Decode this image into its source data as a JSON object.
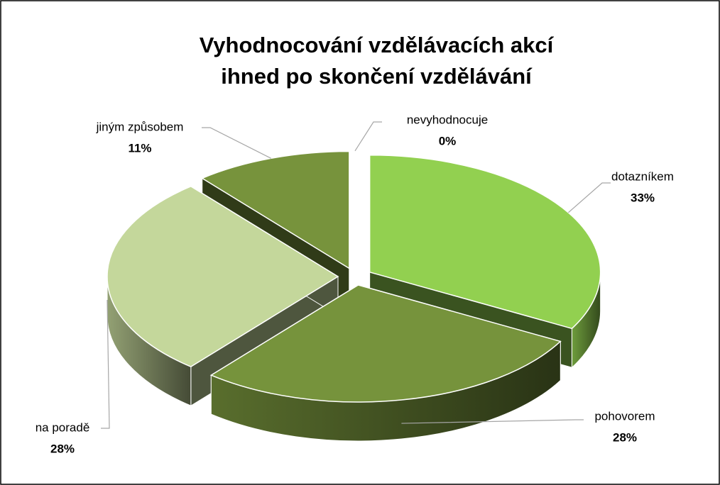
{
  "chart_data": {
    "type": "pie",
    "title": "Vyhodnocování vzdělávacích akcí",
    "subtitle": "ihned po skončení vzdělávání",
    "categories": [
      "dotazníkem",
      "pohovorem",
      "na poradě",
      "jiným způsobem",
      "nevyhodnocuje"
    ],
    "values": [
      33,
      28,
      28,
      11,
      0
    ],
    "value_labels": [
      "33%",
      "28%",
      "28%",
      "11%",
      "0%"
    ],
    "colors": [
      "#92d050",
      "#76933c",
      "#c4d79b",
      "#77933c",
      "#92d050"
    ]
  }
}
